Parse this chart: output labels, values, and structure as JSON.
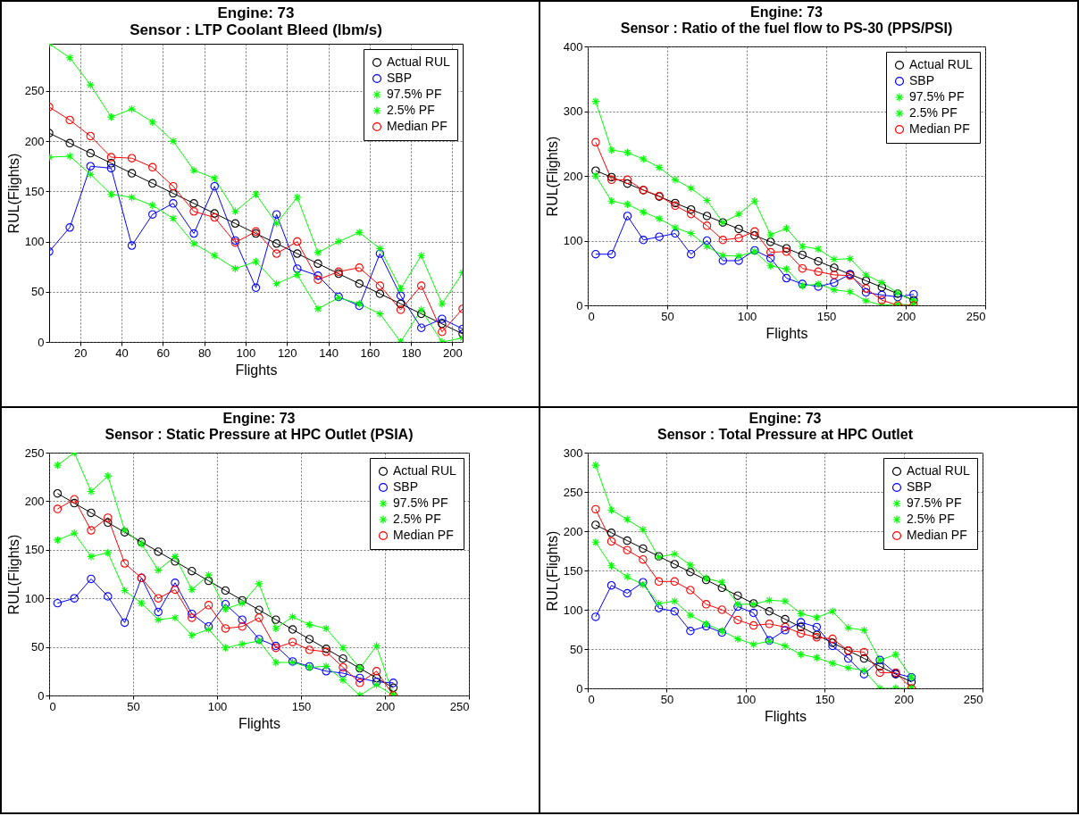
{
  "chart_data": [
    {
      "type": "line",
      "title": "Engine: 73",
      "subtitle": "Sensor : LTP Coolant Bleed (lbm/s)",
      "xlabel": "Flights",
      "ylabel": "RUL(Flights)",
      "x": [
        5,
        15,
        25,
        35,
        45,
        55,
        65,
        75,
        85,
        95,
        105,
        115,
        125,
        135,
        145,
        155,
        165,
        175,
        185,
        195,
        205
      ],
      "xlim": [
        5,
        205
      ],
      "xticks": [
        20,
        40,
        60,
        80,
        100,
        120,
        140,
        160,
        180,
        200
      ],
      "ylim": [
        0,
        297
      ],
      "yticks": [
        0,
        50,
        100,
        150,
        200,
        250
      ],
      "grid": true,
      "legend": "top right",
      "series": [
        {
          "name": "Actual RUL",
          "color": "#000000",
          "marker": "circle",
          "values": [
            208,
            198,
            188,
            178,
            168,
            158,
            148,
            138,
            128,
            118,
            108,
            98,
            88,
            78,
            68,
            58,
            48,
            38,
            28,
            18,
            8
          ]
        },
        {
          "name": "SBP",
          "color": "#0000ff",
          "marker": "circle",
          "values": [
            90,
            114,
            175,
            173,
            96,
            127,
            138,
            108,
            155,
            101,
            54,
            127,
            73,
            66,
            45,
            36,
            88,
            46,
            14,
            23,
            13
          ]
        },
        {
          "name": "97.5% PF",
          "color": "#00ff00",
          "marker": "cross",
          "values": [
            297,
            283,
            256,
            224,
            232,
            219,
            200,
            171,
            163,
            130,
            147,
            118,
            144,
            89,
            100,
            109,
            93,
            53,
            86,
            38,
            69
          ]
        },
        {
          "name": "2.5% PF",
          "color": "#00ff00",
          "marker": "cross",
          "values": [
            184,
            185,
            167,
            147,
            144,
            136,
            123,
            98,
            86,
            73,
            80,
            58,
            67,
            33,
            44,
            38,
            28,
            0,
            32,
            0,
            4
          ]
        },
        {
          "name": "Median PF",
          "color": "#ff0000",
          "marker": "circle",
          "values": [
            234,
            221,
            205,
            184,
            183,
            174,
            155,
            130,
            124,
            99,
            110,
            88,
            100,
            62,
            70,
            74,
            56,
            32,
            56,
            10,
            33
          ]
        }
      ]
    },
    {
      "type": "line",
      "title": "Engine: 73",
      "subtitle": "Sensor : Ratio of the fuel flow to PS-30 (PPS/PSI)",
      "xlabel": "Flights",
      "ylabel": "RUL(Flights)",
      "x": [
        5,
        15,
        25,
        35,
        45,
        55,
        65,
        75,
        85,
        95,
        105,
        115,
        125,
        135,
        145,
        155,
        165,
        175,
        185,
        195,
        205
      ],
      "xlim": [
        0,
        250
      ],
      "xticks": [
        0,
        50,
        100,
        150,
        200,
        250
      ],
      "ylim": [
        0,
        400
      ],
      "yticks": [
        0,
        100,
        200,
        300,
        400
      ],
      "grid": true,
      "legend": "top right",
      "series": [
        {
          "name": "Actual RUL",
          "color": "#000000",
          "marker": "circle",
          "values": [
            208,
            198,
            188,
            178,
            168,
            158,
            148,
            138,
            128,
            118,
            108,
            98,
            88,
            78,
            68,
            58,
            48,
            38,
            28,
            18,
            8
          ]
        },
        {
          "name": "SBP",
          "color": "#0000ff",
          "marker": "circle",
          "values": [
            79,
            79,
            138,
            101,
            106,
            111,
            79,
            100,
            69,
            69,
            85,
            73,
            42,
            33,
            29,
            35,
            48,
            20,
            16,
            13,
            17
          ]
        },
        {
          "name": "97.5% PF",
          "color": "#00ff00",
          "marker": "cross",
          "values": [
            315,
            240,
            236,
            226,
            213,
            194,
            181,
            162,
            128,
            141,
            161,
            109,
            119,
            91,
            87,
            71,
            72,
            47,
            35,
            19,
            7
          ]
        },
        {
          "name": "2.5% PF",
          "color": "#00ff00",
          "marker": "cross",
          "values": [
            200,
            161,
            156,
            144,
            134,
            120,
            111,
            91,
            77,
            76,
            83,
            61,
            56,
            30,
            33,
            24,
            21,
            7,
            0,
            2,
            0
          ]
        },
        {
          "name": "Median PF",
          "color": "#ff0000",
          "marker": "circle",
          "values": [
            252,
            194,
            194,
            178,
            169,
            154,
            141,
            123,
            101,
            104,
            114,
            82,
            83,
            57,
            52,
            47,
            46,
            26,
            8,
            0,
            0
          ]
        }
      ]
    },
    {
      "type": "line",
      "title": "Engine: 73",
      "subtitle": "Sensor : Static Pressure at HPC Outlet (PSIA)",
      "xlabel": "Flights",
      "ylabel": "RUL(Flights)",
      "x": [
        5,
        15,
        25,
        35,
        45,
        55,
        65,
        75,
        85,
        95,
        105,
        115,
        125,
        135,
        145,
        155,
        165,
        175,
        185,
        195,
        205
      ],
      "xlim": [
        0,
        250
      ],
      "xticks": [
        0,
        50,
        100,
        150,
        200,
        250
      ],
      "ylim": [
        0,
        250
      ],
      "yticks": [
        0,
        50,
        100,
        150,
        200,
        250
      ],
      "grid": true,
      "legend": "top right",
      "series": [
        {
          "name": "Actual RUL",
          "color": "#000000",
          "marker": "circle",
          "values": [
            208,
            198,
            188,
            178,
            168,
            158,
            148,
            138,
            128,
            118,
            108,
            98,
            88,
            78,
            68,
            58,
            48,
            38,
            28,
            18,
            8
          ]
        },
        {
          "name": "SBP",
          "color": "#0000ff",
          "marker": "circle",
          "values": [
            95,
            100,
            120,
            102,
            75,
            121,
            86,
            116,
            84,
            71,
            94,
            78,
            58,
            51,
            35,
            30,
            25,
            23,
            18,
            14,
            13
          ]
        },
        {
          "name": "97.5% PF",
          "color": "#00ff00",
          "marker": "cross",
          "values": [
            237,
            250,
            210,
            226,
            170,
            156,
            129,
            143,
            109,
            124,
            89,
            95,
            115,
            69,
            81,
            73,
            69,
            49,
            28,
            51,
            0
          ]
        },
        {
          "name": "2.5% PF",
          "color": "#00ff00",
          "marker": "cross",
          "values": [
            160,
            167,
            143,
            147,
            108,
            95,
            78,
            80,
            62,
            68,
            49,
            53,
            56,
            34,
            34,
            29,
            30,
            16,
            0,
            11,
            0
          ]
        },
        {
          "name": "Median PF",
          "color": "#ff0000",
          "marker": "circle",
          "values": [
            192,
            202,
            170,
            183,
            136,
            121,
            100,
            109,
            80,
            93,
            69,
            71,
            80,
            49,
            55,
            47,
            45,
            29,
            13,
            25,
            0
          ]
        }
      ]
    },
    {
      "type": "line",
      "title": "Engine: 73",
      "subtitle": "Sensor : Total Pressure at HPC Outlet",
      "xlabel": "Flights",
      "ylabel": "RUL(Flights)",
      "x": [
        5,
        15,
        25,
        35,
        45,
        55,
        65,
        75,
        85,
        95,
        105,
        115,
        125,
        135,
        145,
        155,
        165,
        175,
        185,
        195,
        205
      ],
      "xlim": [
        0,
        250
      ],
      "xticks": [
        0,
        50,
        100,
        150,
        200,
        250
      ],
      "ylim": [
        0,
        300
      ],
      "yticks": [
        0,
        50,
        100,
        150,
        200,
        250,
        300
      ],
      "grid": true,
      "legend": "top right",
      "series": [
        {
          "name": "Actual RUL",
          "color": "#000000",
          "marker": "circle",
          "values": [
            208,
            198,
            188,
            178,
            168,
            158,
            148,
            138,
            128,
            118,
            108,
            98,
            88,
            78,
            68,
            58,
            48,
            38,
            28,
            18,
            8
          ]
        },
        {
          "name": "SBP",
          "color": "#0000ff",
          "marker": "circle",
          "values": [
            91,
            131,
            121,
            135,
            102,
            98,
            73,
            79,
            71,
            104,
            96,
            61,
            74,
            84,
            78,
            54,
            38,
            18,
            36,
            19,
            14
          ]
        },
        {
          "name": "97.5% PF",
          "color": "#00ff00",
          "marker": "cross",
          "values": [
            284,
            227,
            215,
            202,
            167,
            171,
            157,
            140,
            135,
            107,
            107,
            112,
            111,
            95,
            90,
            98,
            77,
            74,
            36,
            43,
            14
          ]
        },
        {
          "name": "2.5% PF",
          "color": "#00ff00",
          "marker": "cross",
          "values": [
            186,
            156,
            142,
            132,
            108,
            111,
            93,
            82,
            73,
            63,
            56,
            60,
            54,
            43,
            39,
            32,
            26,
            23,
            0,
            0,
            0
          ]
        },
        {
          "name": "Median PF",
          "color": "#ff0000",
          "marker": "circle",
          "values": [
            228,
            187,
            176,
            164,
            136,
            136,
            125,
            107,
            100,
            87,
            80,
            82,
            78,
            70,
            65,
            63,
            48,
            46,
            20,
            20,
            0
          ]
        }
      ]
    }
  ]
}
